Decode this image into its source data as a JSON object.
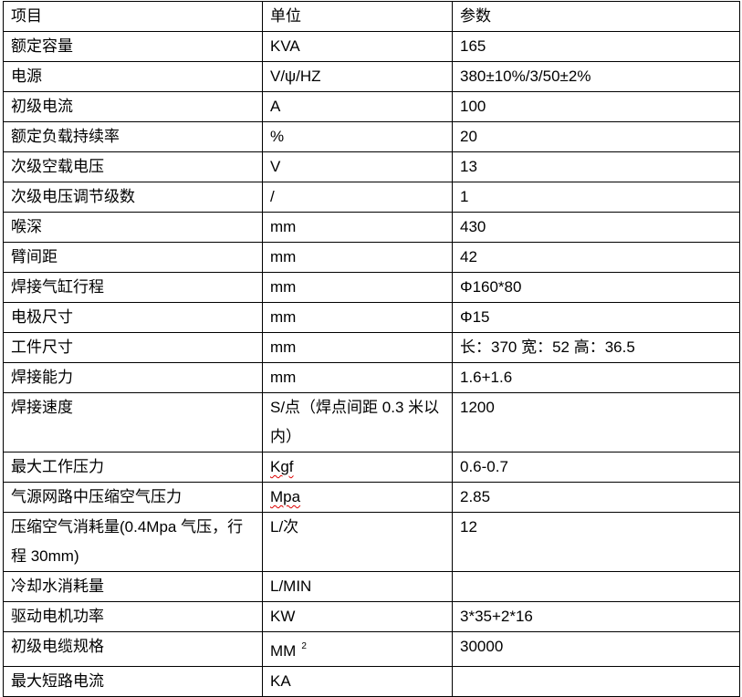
{
  "headers": [
    "项目",
    "单位",
    "参数"
  ],
  "rows": [
    {
      "item": "额定容量",
      "unit": "KVA",
      "value": "165"
    },
    {
      "item": "电源",
      "unit": "V/ψ/HZ",
      "value": "380±10%/3/50±2%"
    },
    {
      "item": "初级电流",
      "unit": "A",
      "value": "100"
    },
    {
      "item": "额定负载持续率",
      "unit": "%",
      "value": "20"
    },
    {
      "item": "次级空载电压",
      "unit": "V",
      "value": "13"
    },
    {
      "item": "次级电压调节级数",
      "unit": "/",
      "value": "1"
    },
    {
      "item": "喉深",
      "unit": "mm",
      "value": "430"
    },
    {
      "item": "臂间距",
      "unit": "mm",
      "value": "42"
    },
    {
      "item": "焊接气缸行程",
      "unit": "mm",
      "value": "Φ160*80"
    },
    {
      "item": "电极尺寸",
      "unit": "mm",
      "value": "Φ15"
    },
    {
      "item": "工件尺寸",
      "unit": "mm",
      "value": "长：370  宽：52  高：36.5"
    },
    {
      "item": "焊接能力",
      "unit": "mm",
      "value": "1.6+1.6"
    },
    {
      "item": "焊接速度",
      "unit": "S/点（焊点间距 0.3 米以内）",
      "value": "1200"
    },
    {
      "item": "最大工作压力",
      "unit": "Kgf",
      "value": "0.6-0.7"
    },
    {
      "item": "气源网路中压缩空气压力",
      "unit": "Mpa",
      "value": "2.85"
    },
    {
      "item": "压缩空气消耗量(0.4Mpa 气压，行程 30mm)",
      "unit": "L/次",
      "value": "12"
    },
    {
      "item": "冷却水消耗量",
      "unit": "L/MIN",
      "value": ""
    },
    {
      "item": "驱动电机功率",
      "unit": "KW",
      "value": "3*35+2*16"
    },
    {
      "item": "初级电缆规格",
      "unit": "MM",
      "unit_sup": "2",
      "value": "30000"
    },
    {
      "item": "最大短路电流",
      "unit": "KA",
      "value": ""
    }
  ]
}
